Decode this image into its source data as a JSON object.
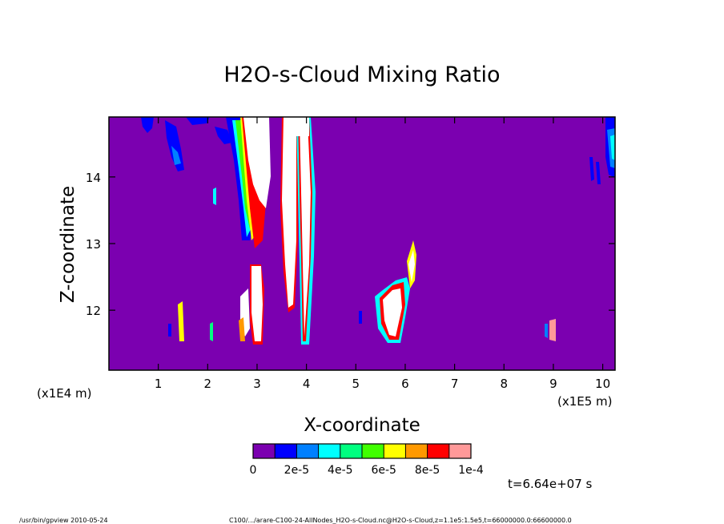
{
  "chart_data": {
    "type": "heatmap",
    "title": "H2O-s-Cloud Mixing Ratio",
    "xlabel": "X-coordinate",
    "ylabel": "Z-coordinate",
    "x_unit_left": "(x1E4 m)",
    "x_unit_right": "(x1E5 m)",
    "xlim": [
      0,
      10.25
    ],
    "ylim": [
      11.1,
      14.9
    ],
    "x_ticks": [
      1,
      2,
      3,
      4,
      5,
      6,
      7,
      8,
      9,
      10
    ],
    "y_ticks": [
      12,
      13,
      14
    ],
    "time_label": "t=6.64e+07 s",
    "colorbar": {
      "colors": [
        "#7b00b0",
        "#0000ff",
        "#0080ff",
        "#00ffff",
        "#00ff80",
        "#40ff00",
        "#ffff00",
        "#ff9900",
        "#ff0000",
        "#ff9999"
      ],
      "labels": [
        "0",
        "2e-5",
        "4e-5",
        "6e-5",
        "8e-5",
        "1e-4"
      ],
      "label_positions": [
        0,
        0.2,
        0.4,
        0.6,
        0.8,
        1.0
      ]
    },
    "background_color": "#7b00b0",
    "saturated_color": "#ffffff",
    "regions": [
      {
        "x": [
          2.6,
          2.9
        ],
        "z": [
          13.1,
          14.9
        ],
        "level": "high"
      },
      {
        "x": [
          2.8,
          3.1
        ],
        "z": [
          11.55,
          12.6
        ],
        "level": "high"
      },
      {
        "x": [
          3.55,
          3.75
        ],
        "z": [
          11.6,
          14.9
        ],
        "level": "high"
      },
      {
        "x": [
          3.85,
          4.1
        ],
        "z": [
          11.6,
          14.9
        ],
        "level": "high"
      },
      {
        "x": [
          5.5,
          5.95
        ],
        "z": [
          11.5,
          12.45
        ],
        "level": "mid"
      },
      {
        "x": [
          6.0,
          6.2
        ],
        "z": [
          12.3,
          13.1
        ],
        "level": "mid"
      },
      {
        "x": [
          10.05,
          10.25
        ],
        "z": [
          14.0,
          14.9
        ],
        "level": "low"
      },
      {
        "x": [
          1.2,
          1.55
        ],
        "z": [
          14.1,
          14.9
        ],
        "level": "low"
      }
    ]
  },
  "footer": {
    "left": "/usr/bin/gpview 2010-05-24",
    "right": "C100/.../arare-C100-24-AllNodes_H2O-s-Cloud.nc@H2O-s-Cloud,z=1.1e5:1.5e5,t=66000000.0:66600000.0"
  }
}
